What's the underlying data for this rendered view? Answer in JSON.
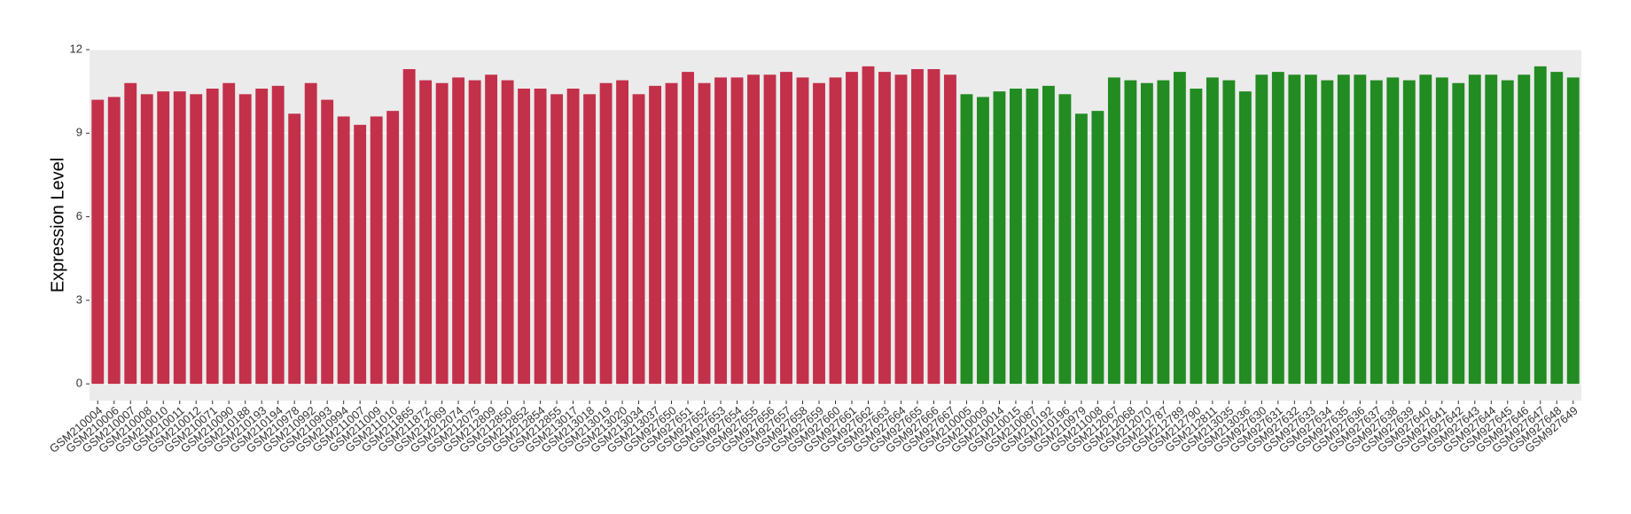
{
  "chart_data": {
    "type": "bar",
    "y_label": "Expression Level",
    "categories": [
      "GSM210004",
      "GSM210006",
      "GSM210007",
      "GSM210008",
      "GSM210010",
      "GSM210011",
      "GSM210012",
      "GSM210071",
      "GSM210090",
      "GSM210188",
      "GSM210193",
      "GSM210194",
      "GSM210978",
      "GSM210992",
      "GSM210993",
      "GSM210994",
      "GSM211007",
      "GSM211009",
      "GSM211010",
      "GSM211865",
      "GSM211872",
      "GSM212069",
      "GSM212074",
      "GSM212075",
      "GSM212809",
      "GSM212850",
      "GSM212852",
      "GSM212854",
      "GSM212855",
      "GSM213017",
      "GSM213018",
      "GSM213019",
      "GSM213020",
      "GSM213034",
      "GSM213037",
      "GSM927650",
      "GSM927651",
      "GSM927652",
      "GSM927653",
      "GSM927654",
      "GSM927655",
      "GSM927656",
      "GSM927657",
      "GSM927658",
      "GSM927659",
      "GSM927660",
      "GSM927661",
      "GSM927662",
      "GSM927663",
      "GSM927664",
      "GSM927665",
      "GSM927666",
      "GSM927667",
      "GSM210005",
      "GSM210009",
      "GSM210014",
      "GSM210015",
      "GSM210087",
      "GSM210192",
      "GSM210196",
      "GSM210979",
      "GSM211008",
      "GSM212067",
      "GSM212068",
      "GSM212070",
      "GSM212787",
      "GSM212789",
      "GSM212790",
      "GSM212811",
      "GSM213035",
      "GSM213036",
      "GSM927630",
      "GSM927631",
      "GSM927632",
      "GSM927633",
      "GSM927634",
      "GSM927635",
      "GSM927636",
      "GSM927637",
      "GSM927638",
      "GSM927639",
      "GSM927640",
      "GSM927641",
      "GSM927642",
      "GSM927643",
      "GSM927644",
      "GSM927645",
      "GSM927646",
      "GSM927647",
      "GSM927648",
      "GSM927649"
    ],
    "series": [
      {
        "color": "#c3304a",
        "values": [
          10.2,
          10.3,
          10.8,
          10.4,
          10.5,
          10.5,
          10.4,
          10.6,
          10.8,
          10.4,
          10.6,
          10.7,
          9.7,
          10.8,
          10.2,
          9.6,
          9.3,
          9.6,
          9.8,
          11.3,
          10.9,
          10.8,
          11.0,
          10.9,
          11.1,
          10.9,
          10.6,
          10.6,
          10.4,
          10.6,
          10.4,
          10.8,
          10.9,
          10.4,
          10.7,
          10.8,
          11.2,
          10.8,
          11.0,
          11.0,
          11.1,
          11.1,
          11.2,
          11.0,
          10.8,
          11.0,
          11.2,
          11.4,
          11.2,
          11.1,
          11.3,
          11.3,
          11.1,
          null,
          null,
          null,
          null,
          null,
          null,
          null,
          null,
          null,
          null,
          null,
          null,
          null,
          null,
          null,
          null,
          null,
          null,
          null,
          null,
          null,
          null,
          null,
          null,
          null,
          null,
          null,
          null,
          null,
          null,
          null,
          null,
          null,
          null,
          null,
          null,
          null,
          null
        ]
      },
      {
        "color": "#228b22",
        "values": [
          null,
          null,
          null,
          null,
          null,
          null,
          null,
          null,
          null,
          null,
          null,
          null,
          null,
          null,
          null,
          null,
          null,
          null,
          null,
          null,
          null,
          null,
          null,
          null,
          null,
          null,
          null,
          null,
          null,
          null,
          null,
          null,
          null,
          null,
          null,
          null,
          null,
          null,
          null,
          null,
          null,
          null,
          null,
          null,
          null,
          null,
          null,
          null,
          null,
          null,
          null,
          null,
          null,
          10.4,
          10.3,
          10.5,
          10.6,
          10.6,
          10.7,
          10.4,
          9.7,
          9.8,
          11.0,
          10.9,
          10.8,
          10.9,
          11.2,
          10.6,
          11.0,
          10.9,
          10.5,
          11.1,
          11.2,
          11.1,
          11.1,
          10.9,
          11.1,
          11.1,
          10.9,
          11.0,
          10.9,
          11.1,
          11.0,
          10.8,
          11.1,
          11.1,
          10.9,
          11.1,
          11.4,
          11.2,
          11.0
        ]
      }
    ],
    "ylim": [
      -0.6,
      12
    ],
    "yticks": [
      0,
      3,
      6,
      9,
      12
    ],
    "grid": true
  }
}
